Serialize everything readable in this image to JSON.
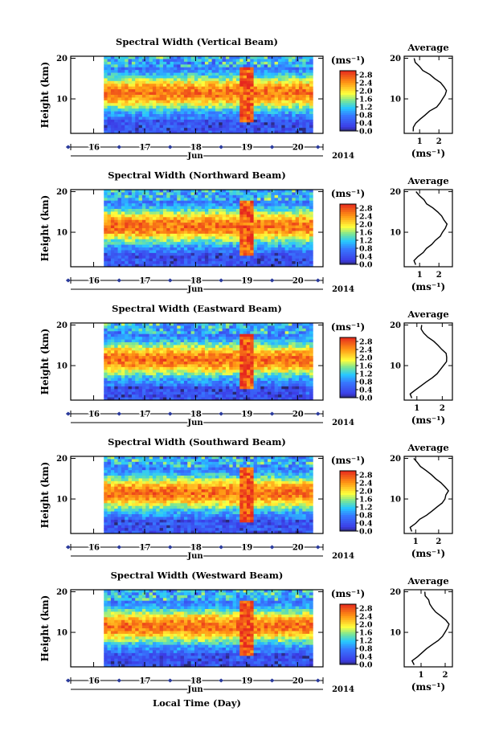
{
  "chart_data": [
    {
      "type": "heatmap",
      "title": "Spectral Width (Vertical Beam)",
      "ylabel": "Height (km)",
      "ytick_labels": [
        "20",
        "10"
      ],
      "yticks": [
        20,
        10
      ],
      "ylim": [
        1.5,
        20.5
      ],
      "x_tick_labels": [
        "16",
        "17",
        "18",
        "19",
        "20"
      ],
      "xticks": [
        16,
        17,
        18,
        19,
        20
      ],
      "xlim": [
        15.55,
        20.5
      ],
      "x_month_label": "Jun",
      "x_year_label": "2014",
      "data_x_start": 16.2,
      "data_x_end": 20.3,
      "colorbar_unit": "(ms⁻¹)",
      "colorbar_ticks": [
        "2.8",
        "2.4",
        "2.0",
        "1.6",
        "1.2",
        "0.8",
        "0.4",
        "0.0"
      ],
      "colorbar_range": [
        0,
        3.0
      ],
      "average_profile": {
        "title": "Average",
        "xlabel": "(ms⁻¹)",
        "xtick_labels": [
          "1",
          "2"
        ],
        "xticks": [
          1,
          2
        ],
        "xlim": [
          0.2,
          2.7
        ],
        "ytick_labels": [
          "20",
          "10"
        ],
        "heights": [
          2,
          3,
          4,
          5,
          6,
          7,
          8,
          9,
          10,
          11,
          12,
          13,
          14,
          15,
          16,
          17,
          18,
          19,
          20
        ],
        "values": [
          0.7,
          0.65,
          0.8,
          1.0,
          1.3,
          1.55,
          1.85,
          2.05,
          2.2,
          2.3,
          2.35,
          2.3,
          2.1,
          1.8,
          1.5,
          1.2,
          0.95,
          0.8,
          0.75
        ]
      }
    },
    {
      "type": "heatmap",
      "title": "Spectral Width (Northward Beam)",
      "ylabel": "Height (km)",
      "ytick_labels": [
        "20",
        "10"
      ],
      "yticks": [
        20,
        10
      ],
      "ylim": [
        1.5,
        20.5
      ],
      "x_tick_labels": [
        "16",
        "17",
        "18",
        "19",
        "20"
      ],
      "xticks": [
        16,
        17,
        18,
        19,
        20
      ],
      "xlim": [
        15.55,
        20.5
      ],
      "x_month_label": "Jun",
      "x_year_label": "2014",
      "data_x_start": 16.2,
      "data_x_end": 20.3,
      "colorbar_unit": "(ms⁻¹)",
      "colorbar_ticks": [
        "2.8",
        "2.4",
        "2.0",
        "1.6",
        "1.2",
        "0.8",
        "0.4",
        "0.0"
      ],
      "colorbar_range": [
        0,
        3.0
      ],
      "average_profile": {
        "title": "Average",
        "xlabel": "(ms⁻¹)",
        "xtick_labels": [
          "1",
          "2"
        ],
        "xticks": [
          1,
          2
        ],
        "xlim": [
          0.2,
          2.7
        ],
        "ytick_labels": [
          "20",
          "10"
        ],
        "heights": [
          2,
          3,
          4,
          5,
          6,
          7,
          8,
          9,
          10,
          11,
          12,
          13,
          14,
          15,
          16,
          17,
          18,
          19,
          20
        ],
        "values": [
          0.8,
          0.75,
          0.95,
          1.15,
          1.35,
          1.6,
          1.85,
          2.05,
          2.2,
          2.35,
          2.4,
          2.3,
          2.15,
          1.9,
          1.65,
          1.4,
          1.2,
          1.0,
          0.85
        ]
      }
    },
    {
      "type": "heatmap",
      "title": "Spectral Width (Eastward Beam)",
      "ylabel": "Height (km)",
      "ytick_labels": [
        "20",
        "10"
      ],
      "yticks": [
        20,
        10
      ],
      "ylim": [
        1.5,
        20.5
      ],
      "x_tick_labels": [
        "16",
        "17",
        "18",
        "19",
        "20"
      ],
      "xticks": [
        16,
        17,
        18,
        19,
        20
      ],
      "xlim": [
        15.55,
        20.5
      ],
      "x_month_label": "Jun",
      "x_year_label": "2014",
      "data_x_start": 16.2,
      "data_x_end": 20.3,
      "colorbar_unit": "(ms⁻¹)",
      "colorbar_ticks": [
        "2.8",
        "2.4",
        "2.0",
        "1.6",
        "1.2",
        "0.8",
        "0.4",
        "0.0"
      ],
      "colorbar_range": [
        0,
        3.0
      ],
      "average_profile": {
        "title": "Average",
        "xlabel": "(ms⁻¹)",
        "xtick_labels": [
          "1",
          "2"
        ],
        "xticks": [
          1,
          2
        ],
        "xlim": [
          0.5,
          2.4
        ],
        "ytick_labels": [
          "20",
          "10"
        ],
        "heights": [
          2,
          3,
          4,
          5,
          6,
          7,
          8,
          9,
          10,
          11,
          12,
          13,
          14,
          15,
          16,
          17,
          18,
          19,
          20
        ],
        "values": [
          0.8,
          0.75,
          0.95,
          1.15,
          1.4,
          1.6,
          1.8,
          1.95,
          2.05,
          2.15,
          2.2,
          2.15,
          2.0,
          1.85,
          1.65,
          1.45,
          1.3,
          1.15,
          1.2
        ]
      }
    },
    {
      "type": "heatmap",
      "title": "Spectral Width (Southward Beam)",
      "ylabel": "Height (km)",
      "ytick_labels": [
        "20",
        "10"
      ],
      "yticks": [
        20,
        10
      ],
      "ylim": [
        1.5,
        20.5
      ],
      "x_tick_labels": [
        "16",
        "17",
        "18",
        "19",
        "20"
      ],
      "xticks": [
        16,
        17,
        18,
        19,
        20
      ],
      "xlim": [
        15.55,
        20.5
      ],
      "x_month_label": "Jun",
      "x_year_label": "2014",
      "data_x_start": 16.2,
      "data_x_end": 20.3,
      "colorbar_unit": "(ms⁻¹)",
      "colorbar_ticks": [
        "2.8",
        "2.4",
        "2.0",
        "1.6",
        "1.2",
        "0.8",
        "0.4",
        "0.0"
      ],
      "colorbar_range": [
        0,
        3.0
      ],
      "average_profile": {
        "title": "Average",
        "xlabel": "(ms⁻¹)",
        "xtick_labels": [
          "1",
          "2"
        ],
        "xticks": [
          1,
          2
        ],
        "xlim": [
          0.5,
          2.6
        ],
        "ytick_labels": [
          "20",
          "10"
        ],
        "heights": [
          2,
          3,
          4,
          5,
          6,
          7,
          8,
          9,
          10,
          11,
          12,
          13,
          14,
          15,
          16,
          17,
          18,
          19,
          20
        ],
        "values": [
          0.8,
          0.75,
          1.0,
          1.2,
          1.45,
          1.7,
          1.95,
          2.15,
          2.3,
          2.35,
          2.4,
          2.3,
          2.1,
          1.9,
          1.65,
          1.45,
          1.2,
          1.05,
          0.9
        ]
      }
    },
    {
      "type": "heatmap",
      "title": "Spectral Width (Westward Beam)",
      "ylabel": "Height (km)",
      "ytick_labels": [
        "20",
        "10"
      ],
      "yticks": [
        20,
        10
      ],
      "ylim": [
        1.5,
        20.5
      ],
      "x_tick_labels": [
        "16",
        "17",
        "18",
        "19",
        "20"
      ],
      "xticks": [
        16,
        17,
        18,
        19,
        20
      ],
      "xlim": [
        15.55,
        20.5
      ],
      "x_month_label": "Jun",
      "x_year_label": "2014",
      "data_x_start": 16.2,
      "data_x_end": 20.3,
      "colorbar_unit": "(ms⁻¹)",
      "colorbar_ticks": [
        "2.8",
        "2.4",
        "2.0",
        "1.6",
        "1.2",
        "0.8",
        "0.4",
        "0.0"
      ],
      "colorbar_range": [
        0,
        3.0
      ],
      "average_profile": {
        "title": "Average",
        "xlabel": "(ms⁻¹)",
        "xtick_labels": [
          "1",
          "2"
        ],
        "xticks": [
          1,
          2
        ],
        "xlim": [
          0.3,
          2.3
        ],
        "ytick_labels": [
          "20",
          "10"
        ],
        "heights": [
          2,
          3,
          4,
          5,
          6,
          7,
          8,
          9,
          10,
          11,
          12,
          13,
          14,
          15,
          16,
          17,
          18,
          19,
          20
        ],
        "values": [
          0.7,
          0.65,
          0.85,
          1.05,
          1.25,
          1.45,
          1.7,
          1.9,
          2.0,
          2.1,
          2.15,
          2.05,
          1.85,
          1.6,
          1.45,
          1.35,
          1.3,
          1.2,
          1.15
        ]
      }
    }
  ],
  "figure": {
    "xlabel": "Local Time (Day)"
  }
}
